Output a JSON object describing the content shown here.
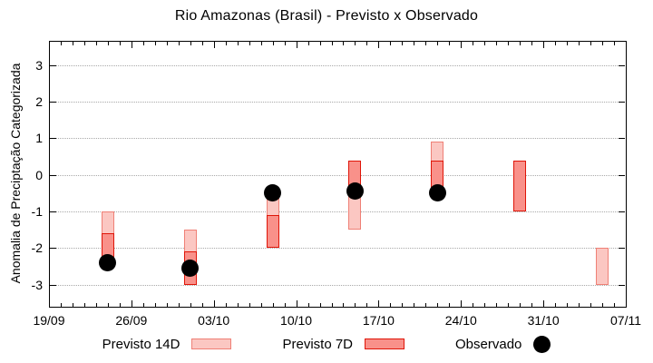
{
  "title": "Rio Amazonas (Brasil) - Previsto x Observado",
  "axes": {
    "y_label": "Anomalia de Preciptação Categorizada",
    "y_ticks": [
      3,
      2,
      1,
      0,
      -1,
      -2,
      -3
    ],
    "x_tick_labels": [
      "19/09",
      "26/09",
      "03/10",
      "10/10",
      "17/10",
      "24/10",
      "31/10",
      "07/11"
    ]
  },
  "legend": [
    {
      "label": "Previsto 14D",
      "swatch": "box",
      "fill": "#fbc7c2",
      "stroke": "#ef8076"
    },
    {
      "label": "Previsto 7D",
      "swatch": "box",
      "fill": "#f9918a",
      "stroke": "#df1508"
    },
    {
      "label": "Observado",
      "swatch": "dot",
      "fill": "#000000"
    }
  ],
  "chart_data": {
    "type": "range-bar+scatter",
    "title": "Rio Amazonas (Brasil) - Previsto x Observado",
    "xlabel": "",
    "ylabel": "Anomalia de Preciptação Categorizada",
    "ylim": [
      -3.6,
      3.66
    ],
    "y_ticks": [
      3,
      2,
      1,
      0,
      -1,
      -2,
      -3
    ],
    "x_tick_labels": [
      "19/09",
      "26/09",
      "03/10",
      "10/10",
      "17/10",
      "24/10",
      "31/10",
      "07/11"
    ],
    "x_tick_days": [
      0,
      7,
      14,
      21,
      28,
      35,
      42,
      49
    ],
    "x_total_days": 49,
    "grid": "horizontal-dotted",
    "legend_position": "bottom",
    "series": [
      {
        "name": "Previsto 14D",
        "type": "range-bar",
        "fill": "#fbc7c2",
        "stroke": "#ef8076",
        "points": [
          {
            "date": "24/09",
            "day": 5,
            "low": -2.5,
            "high": -1.0
          },
          {
            "date": "01/10",
            "day": 12,
            "low": -3.0,
            "high": -1.5
          },
          {
            "date": "08/10",
            "day": 19,
            "low": -2.0,
            "high": -0.5
          },
          {
            "date": "15/10",
            "day": 26,
            "low": -1.5,
            "high": 0.4
          },
          {
            "date": "22/10",
            "day": 33,
            "low": -0.5,
            "high": 0.9
          },
          {
            "date": "05/11",
            "day": 47,
            "low": -3.0,
            "high": -2.0
          }
        ]
      },
      {
        "name": "Previsto 7D",
        "type": "range-bar",
        "fill": "#f9918a",
        "stroke": "#df1508",
        "points": [
          {
            "date": "24/09",
            "day": 5,
            "low": -2.5,
            "high": -1.6
          },
          {
            "date": "01/10",
            "day": 12,
            "low": -3.0,
            "high": -2.1
          },
          {
            "date": "08/10",
            "day": 19,
            "low": -2.0,
            "high": -1.1
          },
          {
            "date": "15/10",
            "day": 26,
            "low": -0.4,
            "high": 0.4
          },
          {
            "date": "22/10",
            "day": 33,
            "low": -0.5,
            "high": 0.4
          },
          {
            "date": "29/10",
            "day": 40,
            "low": -1.0,
            "high": 0.4
          }
        ]
      },
      {
        "name": "Observado",
        "type": "scatter",
        "color": "#000000",
        "points": [
          {
            "date": "24/09",
            "day": 5,
            "value": -2.4
          },
          {
            "date": "01/10",
            "day": 12,
            "value": -2.55
          },
          {
            "date": "08/10",
            "day": 19,
            "value": -0.5
          },
          {
            "date": "15/10",
            "day": 26,
            "value": -0.45
          },
          {
            "date": "22/10",
            "day": 33,
            "value": -0.5
          }
        ]
      }
    ]
  }
}
